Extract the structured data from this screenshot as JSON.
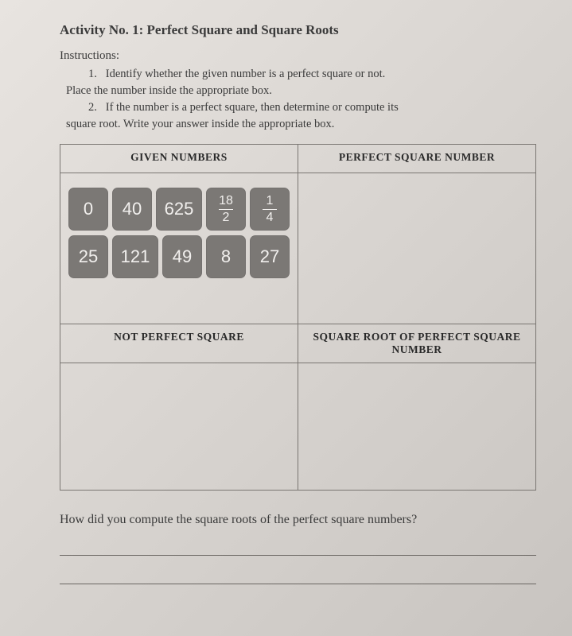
{
  "title": "Activity No. 1: Perfect Square and Square Roots",
  "instructions_label": "Instructions:",
  "instructions": {
    "item1_line1": "1.   Identify whether the given number is a perfect square or not.",
    "item1_line2": "Place the number inside the appropriate box.",
    "item2_line1": "2.   If the number is a perfect square, then determine or compute its",
    "item2_line2": "square root. Write your answer inside the appropriate box."
  },
  "headers": {
    "given": "GIVEN NUMBERS",
    "perfect": "PERFECT SQUARE NUMBER",
    "not_perfect": "NOT PERFECT SQUARE",
    "sqrt": "SQUARE ROOT OF PERFECT SQUARE NUMBER"
  },
  "tiles": {
    "row1": [
      {
        "type": "int",
        "value": "0"
      },
      {
        "type": "int",
        "value": "40"
      },
      {
        "type": "int",
        "value": "625"
      },
      {
        "type": "frac",
        "num": "18",
        "den": "2"
      },
      {
        "type": "frac",
        "num": "1",
        "den": "4"
      }
    ],
    "row2": [
      {
        "type": "int",
        "value": "25"
      },
      {
        "type": "int",
        "value": "121"
      },
      {
        "type": "int",
        "value": "49"
      },
      {
        "type": "int",
        "value": "8"
      },
      {
        "type": "int",
        "value": "27"
      }
    ]
  },
  "footer_question": "How did you compute the square roots of the perfect square numbers?",
  "colors": {
    "tile_bg": "#7b7875",
    "tile_fg": "#f2f0ee",
    "border": "#7a7672",
    "text": "#3a3a3a"
  }
}
